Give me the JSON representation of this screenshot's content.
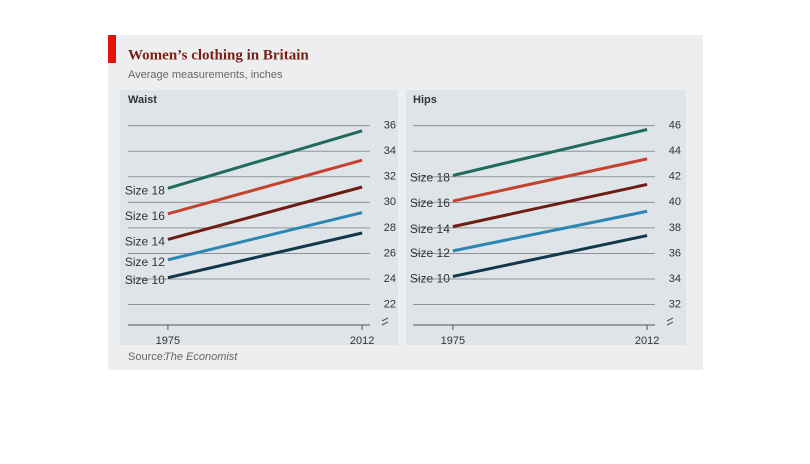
{
  "title": "Women’s clothing in Britain",
  "subtitle": "Average measurements, inches",
  "source_label": "Source:",
  "source": "The Economist",
  "chart_data": [
    {
      "type": "line",
      "title": "Waist",
      "x": [
        1975,
        2012
      ],
      "xlim": [
        1967.4,
        2013.5
      ],
      "xticks": [
        1975,
        2012
      ],
      "ylim": [
        20.4,
        36.6
      ],
      "yticks": [
        22,
        24,
        26,
        28,
        30,
        32,
        34,
        36
      ],
      "grid": true,
      "series": [
        {
          "name": "Size 18",
          "color": "#1f6b60",
          "values": [
            31.1,
            35.6
          ]
        },
        {
          "name": "Size 16",
          "color": "#c4432f",
          "values": [
            29.1,
            33.3
          ]
        },
        {
          "name": "Size 14",
          "color": "#6e1d12",
          "values": [
            27.1,
            31.2
          ]
        },
        {
          "name": "Size 12",
          "color": "#2b86b4",
          "values": [
            25.5,
            29.2
          ]
        },
        {
          "name": "Size 10",
          "color": "#12374b",
          "values": [
            24.1,
            27.6
          ]
        }
      ]
    },
    {
      "type": "line",
      "title": "Hips",
      "x": [
        1975,
        2012
      ],
      "xlim": [
        1967.4,
        2013.5
      ],
      "xticks": [
        1975,
        2012
      ],
      "ylim": [
        30.4,
        46.6
      ],
      "yticks": [
        32,
        34,
        36,
        38,
        40,
        42,
        44,
        46
      ],
      "grid": true,
      "series": [
        {
          "name": "Size 18",
          "color": "#1f6b60",
          "values": [
            42.1,
            45.7
          ]
        },
        {
          "name": "Size 16",
          "color": "#c4432f",
          "values": [
            40.1,
            43.4
          ]
        },
        {
          "name": "Size 14",
          "color": "#6e1d12",
          "values": [
            38.1,
            41.4
          ]
        },
        {
          "name": "Size 12",
          "color": "#2b86b4",
          "values": [
            36.2,
            39.3
          ]
        },
        {
          "name": "Size 10",
          "color": "#12374b",
          "values": [
            34.2,
            37.4
          ]
        }
      ]
    }
  ]
}
